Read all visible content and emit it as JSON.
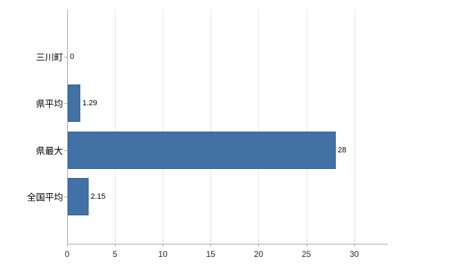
{
  "chart_data": {
    "type": "bar",
    "orientation": "horizontal",
    "title": "",
    "xlabel": "",
    "ylabel": "",
    "categories": [
      "三川町",
      "県平均",
      "県最大",
      "全国平均"
    ],
    "values": [
      0,
      1.29,
      28,
      2.15
    ],
    "value_labels": [
      "0",
      "1.29",
      "28",
      "2.15"
    ],
    "xticks": [
      0,
      5,
      10,
      15,
      20,
      25,
      30
    ],
    "xtick_labels": [
      "0",
      "5",
      "10",
      "15",
      "20",
      "25",
      "30"
    ],
    "xlim": [
      0,
      33.5
    ],
    "grid": true,
    "legend": "none",
    "colors": {
      "bar_fill": "#4271a6",
      "bar_border": "#35618f",
      "gridline": "#e6e6e6",
      "axis": "#a6a6a6",
      "tick_text": "#262626",
      "label_text": "#000000",
      "background": "#ffffff"
    }
  }
}
